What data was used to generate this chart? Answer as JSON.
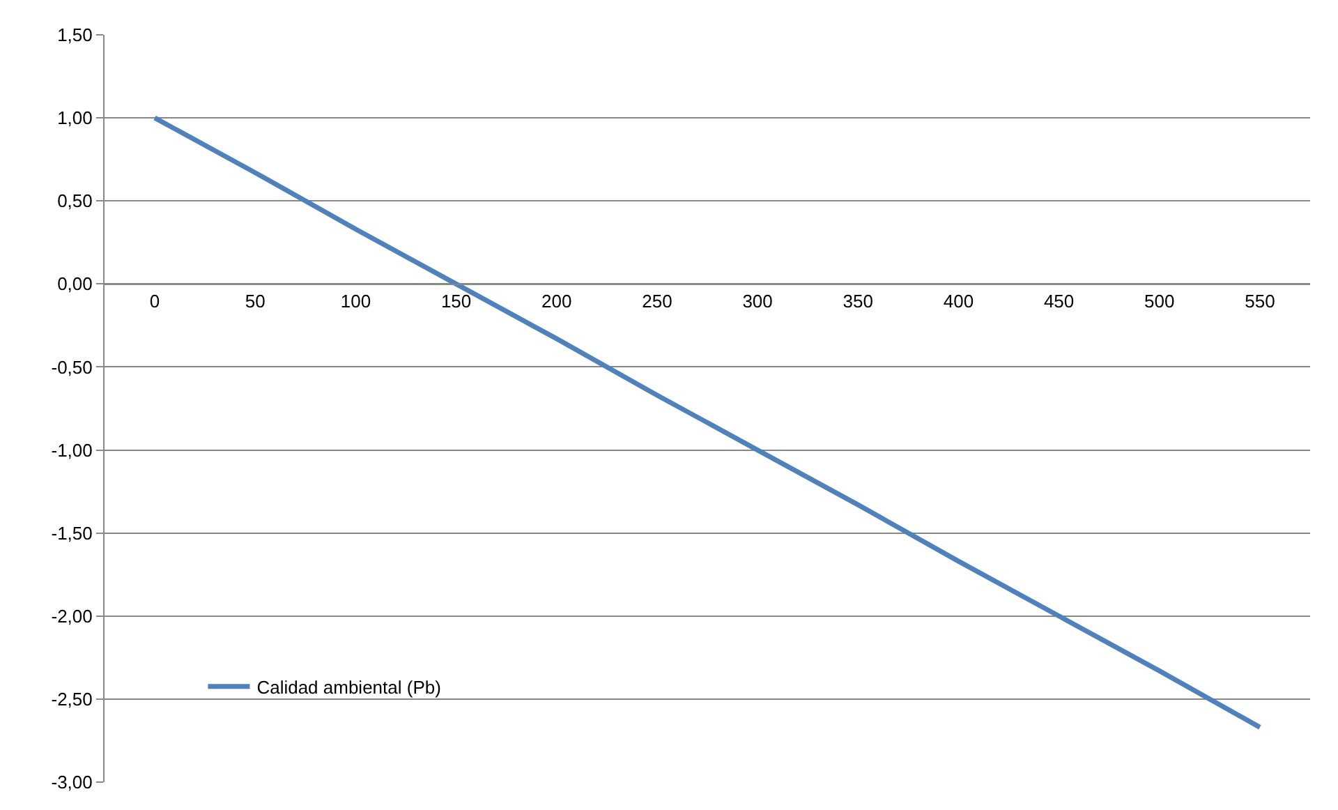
{
  "chart_data": {
    "type": "line",
    "categories": [
      "0",
      "50",
      "100",
      "150",
      "200",
      "250",
      "300",
      "350",
      "400",
      "450",
      "500",
      "550"
    ],
    "series": [
      {
        "name": "Calidad ambiental (Pb)",
        "color": "#4f81bd",
        "values": [
          1.0,
          0.67,
          0.33,
          0.0,
          -0.33,
          -0.67,
          -1.0,
          -1.33,
          -1.67,
          -2.0,
          -2.33,
          -2.67
        ]
      }
    ],
    "ylim": [
      -3.0,
      1.5
    ],
    "yticks": [
      {
        "value": 1.5,
        "label": "1,50"
      },
      {
        "value": 1.0,
        "label": "1,00"
      },
      {
        "value": 0.5,
        "label": "0,50"
      },
      {
        "value": 0.0,
        "label": "0,00"
      },
      {
        "value": -0.5,
        "label": "-0,50"
      },
      {
        "value": -1.0,
        "label": "-1,00"
      },
      {
        "value": -1.5,
        "label": "-1,50"
      },
      {
        "value": -2.0,
        "label": "-2,00"
      },
      {
        "value": -2.5,
        "label": "-2,50"
      },
      {
        "value": -3.0,
        "label": "-3,00"
      }
    ],
    "grid": "y",
    "legend": "bottom left",
    "marker": "none",
    "line_style": "solid"
  }
}
